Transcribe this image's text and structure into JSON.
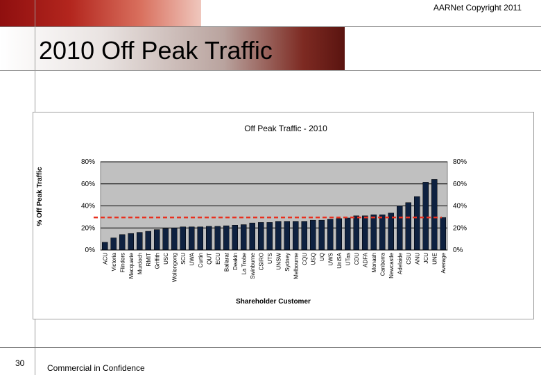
{
  "header": {
    "copyright": "AARNet Copyright 2011"
  },
  "slide": {
    "title": "2010 Off Peak Traffic"
  },
  "footer": {
    "page_number": "30",
    "confidentiality": "Commercial in Confidence"
  },
  "colors": {
    "bar": "#0e2140",
    "plot_bg": "#c0c0c0",
    "average_line": "#e8301f"
  },
  "chart_data": {
    "type": "bar",
    "title": "Off Peak Traffic - 2010",
    "xlabel": "Shareholder Customer",
    "ylabel": "% Off Peak Traffic",
    "ylim": [
      0,
      80
    ],
    "yticks": [
      "0%",
      "20%",
      "40%",
      "60%",
      "80%"
    ],
    "reference_line": {
      "label": "Average",
      "value": 29.5,
      "style": "dashed"
    },
    "categories": [
      "ACU",
      "Victoria",
      "Flinders",
      "Macquarie",
      "Murdoch",
      "RMIT",
      "Griffith",
      "USC",
      "Wollongong",
      "SCU",
      "UWA",
      "Curtin",
      "QUT",
      "ECU",
      "Ballarat",
      "Deakin",
      "La Trobe",
      "Swinburne",
      "CSIRO",
      "UTS",
      "UNSW",
      "Sydney",
      "Melbourne",
      "CQU",
      "USQ",
      "UQ",
      "UWS",
      "UniSA",
      "UTas",
      "CDU",
      "ADFA",
      "Monash",
      "Canberra",
      "Newcastle",
      "Adelaide",
      "CSU",
      "ANU",
      "JCU",
      "UNE",
      "Average"
    ],
    "values": [
      7,
      11,
      14,
      15,
      16,
      17,
      18.5,
      19.5,
      20,
      21,
      21,
      21,
      21.5,
      21.5,
      22,
      22.5,
      23,
      24.5,
      25,
      25,
      26,
      26,
      26,
      26,
      27,
      27,
      28,
      28.5,
      29,
      31,
      31,
      32,
      32,
      33.5,
      40,
      43,
      48.5,
      61.5,
      64,
      29.5
    ]
  }
}
